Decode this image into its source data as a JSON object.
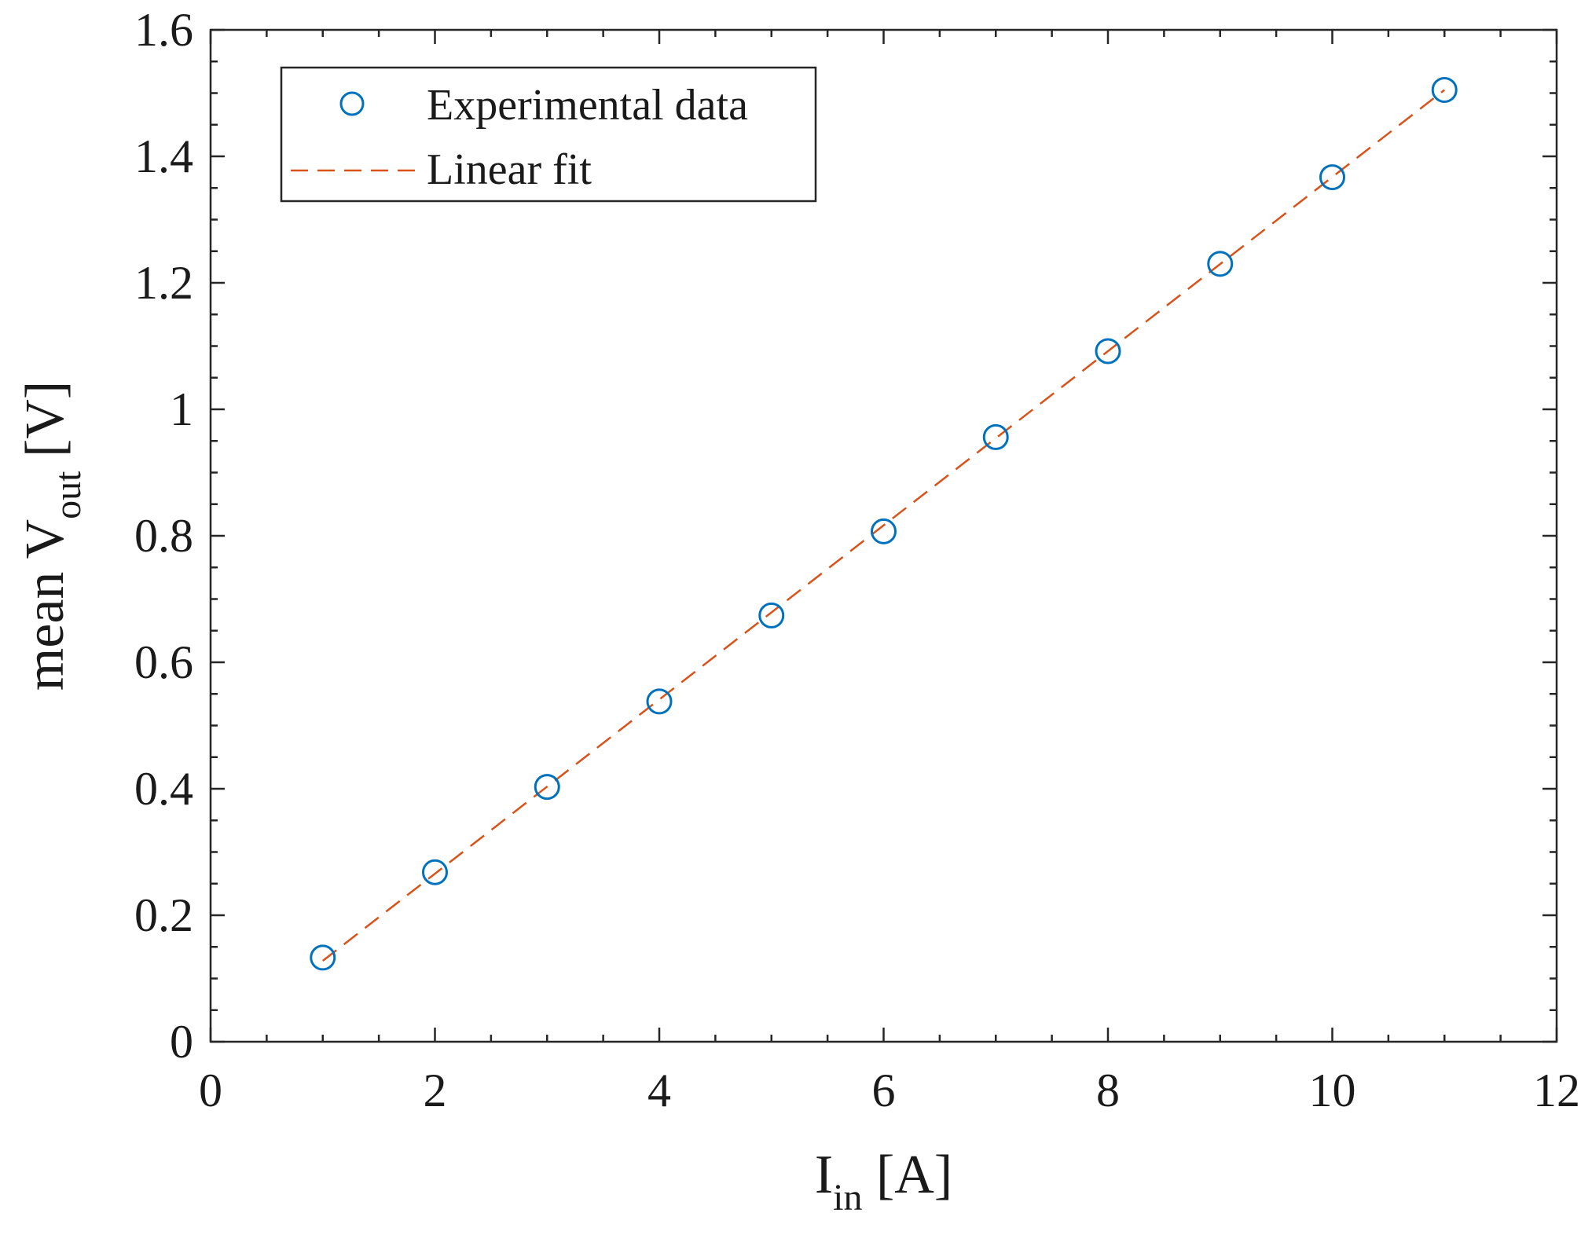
{
  "chart_data": {
    "type": "scatter",
    "xlabel": {
      "main": "I",
      "sub": "in",
      "unit": " [A]"
    },
    "ylabel": {
      "main": "mean V",
      "sub": "out",
      "unit": " [V]"
    },
    "xlim": [
      0,
      12
    ],
    "ylim": [
      0,
      1.6
    ],
    "xticks": [
      0,
      2,
      4,
      6,
      8,
      10,
      12
    ],
    "yticks": [
      0,
      0.2,
      0.4,
      0.6,
      0.8,
      1.0,
      1.2,
      1.4,
      1.6
    ],
    "xtick_labels": [
      "0",
      "2",
      "4",
      "6",
      "8",
      "10",
      "12"
    ],
    "ytick_labels": [
      "0",
      "0.2",
      "0.4",
      "0.6",
      "0.8",
      "1",
      "1.2",
      "1.4",
      "1.6"
    ],
    "x_minor_step": 0.5,
    "y_minor_step": 0.05,
    "grid": false,
    "legend_position": "top-left",
    "series": [
      {
        "name": "Experimental data",
        "style": "markers",
        "marker": "circle",
        "color": "#0072bd",
        "x": [
          1,
          2,
          3,
          4,
          5,
          6,
          7,
          8,
          9,
          10,
          11
        ],
        "y": [
          0.133,
          0.268,
          0.403,
          0.538,
          0.674,
          0.807,
          0.956,
          1.092,
          1.23,
          1.367,
          1.505
        ]
      },
      {
        "name": "Linear fit",
        "style": "dashed-line",
        "color": "#d95319",
        "x": [
          1,
          11
        ],
        "y": [
          0.128,
          1.505
        ]
      }
    ]
  }
}
